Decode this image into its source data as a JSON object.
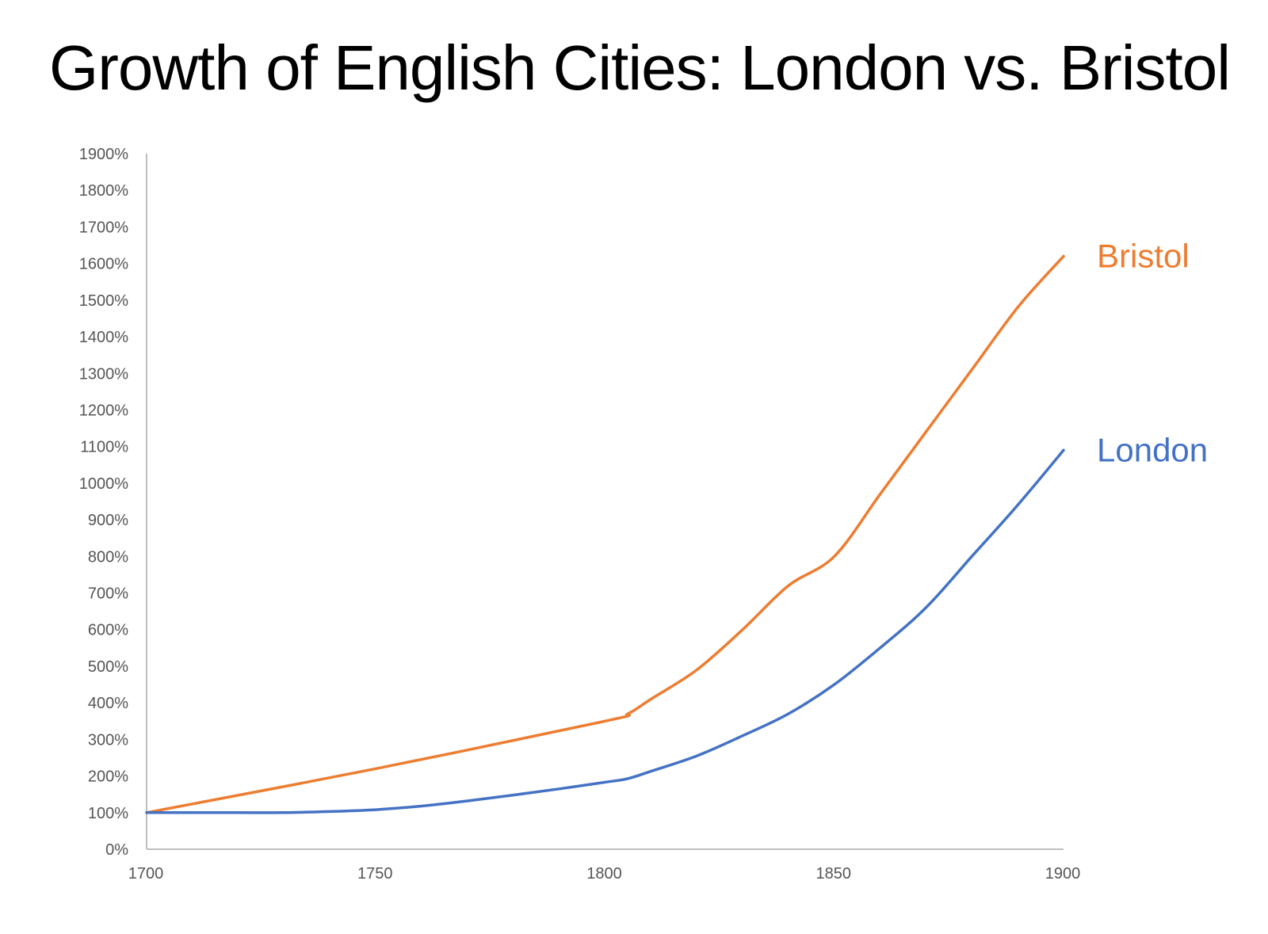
{
  "chart_data": {
    "type": "line",
    "title": "Growth of English Cities: London vs. Bristol",
    "xlabel": "",
    "ylabel": "",
    "x_ticks": [
      "1700",
      "1750",
      "1800",
      "1850",
      "1900"
    ],
    "y_ticks": [
      "0%",
      "100%",
      "200%",
      "300%",
      "400%",
      "500%",
      "600%",
      "700%",
      "800%",
      "900%",
      "1000%",
      "1100%",
      "1200%",
      "1300%",
      "1400%",
      "1500%",
      "1600%",
      "1700%",
      "1800%",
      "1900%"
    ],
    "xlim": [
      1700,
      1900
    ],
    "ylim": [
      0,
      1900
    ],
    "grid": false,
    "legend": "inline labels at line ends",
    "series": [
      {
        "name": "Bristol",
        "color": "#ED7D31",
        "x": [
          1700,
          1750,
          1800,
          1805,
          1810,
          1820,
          1830,
          1840,
          1850,
          1860,
          1870,
          1880,
          1890,
          1900
        ],
        "y": [
          100,
          220,
          350,
          370,
          410,
          490,
          600,
          720,
          800,
          970,
          1140,
          1310,
          1480,
          1620
        ]
      },
      {
        "name": "London",
        "color": "#4472C4",
        "x": [
          1700,
          1710,
          1720,
          1730,
          1740,
          1750,
          1760,
          1770,
          1780,
          1790,
          1800,
          1805,
          1810,
          1820,
          1830,
          1840,
          1850,
          1860,
          1870,
          1880,
          1890,
          1900
        ],
        "y": [
          100,
          100,
          100,
          100,
          103,
          108,
          118,
          132,
          148,
          165,
          183,
          193,
          213,
          255,
          310,
          370,
          450,
          550,
          660,
          800,
          940,
          1090
        ]
      }
    ]
  }
}
